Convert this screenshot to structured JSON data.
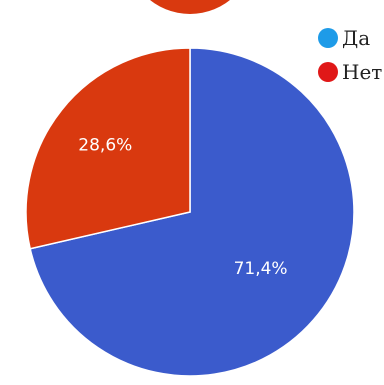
{
  "chart_data": {
    "type": "pie",
    "slices": [
      {
        "label": "Да",
        "value": 71.4,
        "display": "71,4%",
        "color": "#3b5bcc"
      },
      {
        "label": "Нет",
        "value": 28.6,
        "display": "28,6%",
        "color": "#d9390f"
      }
    ],
    "legend": {
      "position": "top-right"
    },
    "partial_chart_above": {
      "color": "#d9390f"
    }
  }
}
